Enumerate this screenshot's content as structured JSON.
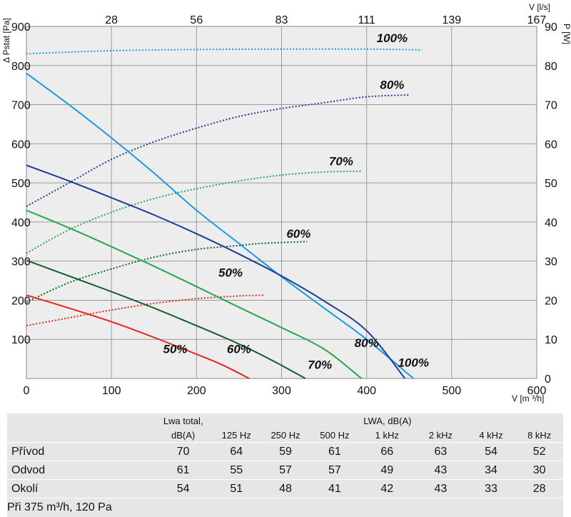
{
  "chart_data": {
    "type": "line",
    "xlabel": "V [m ³/h]",
    "x2label": "V [l/s]",
    "ylabel": "Δ Pstat [Pa]",
    "y2label": "P [W]",
    "xlim": [
      0,
      600
    ],
    "ylim": [
      0,
      900
    ],
    "y2lim": [
      0,
      90
    ],
    "xticks": [
      "0",
      "100",
      "200",
      "300",
      "400",
      "500",
      "600"
    ],
    "yticks": [
      "100",
      "200",
      "300",
      "400",
      "500",
      "600",
      "700",
      "800",
      "900"
    ],
    "y2ticks": [
      "0",
      "10",
      "20",
      "30",
      "40",
      "50",
      "60",
      "70",
      "80",
      "90"
    ],
    "x2ticks": [
      {
        "label": "28",
        "x": 100
      },
      {
        "label": "56",
        "x": 200
      },
      {
        "label": "83",
        "x": 300
      },
      {
        "label": "111",
        "x": 400
      },
      {
        "label": "139",
        "x": 500
      },
      {
        "label": "167",
        "x": 600
      }
    ],
    "grid": true,
    "colors": {
      "100%": "#1a9be0",
      "80%": "#1b3f95",
      "70%": "#27a74a",
      "60%": "#15602c",
      "50%": "#e52521"
    },
    "pressure_series": [
      {
        "name": "100%",
        "color": "#1a9be0",
        "label_at": [
          455,
          30
        ],
        "points": [
          [
            0,
            780
          ],
          [
            50,
            700
          ],
          [
            100,
            615
          ],
          [
            150,
            525
          ],
          [
            200,
            430
          ],
          [
            250,
            345
          ],
          [
            300,
            260
          ],
          [
            350,
            180
          ],
          [
            400,
            100
          ],
          [
            455,
            0
          ]
        ]
      },
      {
        "name": "80%",
        "color": "#1b3f95",
        "label_at": [
          400,
          80
        ],
        "points": [
          [
            0,
            545
          ],
          [
            50,
            505
          ],
          [
            100,
            462
          ],
          [
            150,
            418
          ],
          [
            200,
            370
          ],
          [
            250,
            318
          ],
          [
            300,
            262
          ],
          [
            350,
            198
          ],
          [
            400,
            122
          ],
          [
            445,
            0
          ]
        ]
      },
      {
        "name": "70%",
        "color": "#27a74a",
        "label_at": [
          345,
          25
        ],
        "points": [
          [
            0,
            430
          ],
          [
            50,
            385
          ],
          [
            100,
            337
          ],
          [
            150,
            287
          ],
          [
            200,
            235
          ],
          [
            250,
            182
          ],
          [
            300,
            130
          ],
          [
            350,
            75
          ],
          [
            394,
            0
          ]
        ]
      },
      {
        "name": "60%",
        "color": "#15602c",
        "label_at": [
          250,
          65
        ],
        "points": [
          [
            0,
            302
          ],
          [
            50,
            262
          ],
          [
            100,
            222
          ],
          [
            150,
            180
          ],
          [
            200,
            135
          ],
          [
            250,
            88
          ],
          [
            290,
            45
          ],
          [
            328,
            0
          ]
        ]
      },
      {
        "name": "50%",
        "color": "#e52521",
        "label_at": [
          175,
          65
        ],
        "points": [
          [
            0,
            213
          ],
          [
            50,
            180
          ],
          [
            100,
            145
          ],
          [
            150,
            105
          ],
          [
            200,
            62
          ],
          [
            230,
            35
          ],
          [
            262,
            0
          ]
        ]
      }
    ],
    "power_series": [
      {
        "name": "100%",
        "color": "#1a9be0",
        "label_at": [
          430,
          86
        ],
        "points": [
          [
            0,
            83
          ],
          [
            100,
            83.8
          ],
          [
            200,
            84.1
          ],
          [
            300,
            84.2
          ],
          [
            400,
            84.2
          ],
          [
            465,
            84
          ]
        ]
      },
      {
        "name": "80%",
        "color": "#1b3f95",
        "label_at": [
          430,
          74
        ],
        "points": [
          [
            0,
            44
          ],
          [
            50,
            50
          ],
          [
            100,
            56
          ],
          [
            150,
            60.5
          ],
          [
            200,
            64
          ],
          [
            250,
            67
          ],
          [
            300,
            69
          ],
          [
            350,
            70.5
          ],
          [
            400,
            72
          ],
          [
            450,
            72.5
          ]
        ]
      },
      {
        "name": "70%",
        "color": "#27a74a",
        "label_at": [
          370,
          54.5
        ],
        "points": [
          [
            0,
            32
          ],
          [
            50,
            38
          ],
          [
            100,
            42.5
          ],
          [
            150,
            46
          ],
          [
            200,
            48.5
          ],
          [
            250,
            50.5
          ],
          [
            300,
            52
          ],
          [
            350,
            52.8
          ],
          [
            395,
            53
          ]
        ]
      },
      {
        "name": "60%",
        "color": "#15602c",
        "label_at": [
          320,
          36
        ],
        "points": [
          [
            0,
            19.5
          ],
          [
            50,
            24.5
          ],
          [
            100,
            28
          ],
          [
            150,
            31
          ],
          [
            200,
            33
          ],
          [
            250,
            34
          ],
          [
            275,
            34.5
          ],
          [
            330,
            35
          ]
        ]
      },
      {
        "name": "50%",
        "color": "#e52521",
        "label_at": [
          240,
          26
        ],
        "points": [
          [
            0,
            13.5
          ],
          [
            50,
            15.5
          ],
          [
            100,
            17.5
          ],
          [
            150,
            19.2
          ],
          [
            200,
            20.4
          ],
          [
            250,
            21.1
          ],
          [
            280,
            21.3
          ]
        ]
      }
    ]
  },
  "table": {
    "header_row1": [
      "",
      "Lwa total,",
      "LWA, dB(A)"
    ],
    "header_row2": [
      "",
      "dB(A)",
      "125 Hz",
      "250 Hz",
      "500 Hz",
      "1 kHz",
      "2 kHz",
      "4 kHz",
      "8 kHz"
    ],
    "rows": [
      {
        "name": "Přívod",
        "values": [
          "70",
          "64",
          "59",
          "61",
          "66",
          "63",
          "54",
          "52"
        ]
      },
      {
        "name": "Odvod",
        "values": [
          "61",
          "55",
          "57",
          "57",
          "49",
          "43",
          "34",
          "30"
        ]
      },
      {
        "name": "Okolí",
        "values": [
          "54",
          "51",
          "48",
          "41",
          "42",
          "43",
          "33",
          "28"
        ]
      }
    ],
    "footnote": "Při 375 m³/h, 120 Pa"
  }
}
